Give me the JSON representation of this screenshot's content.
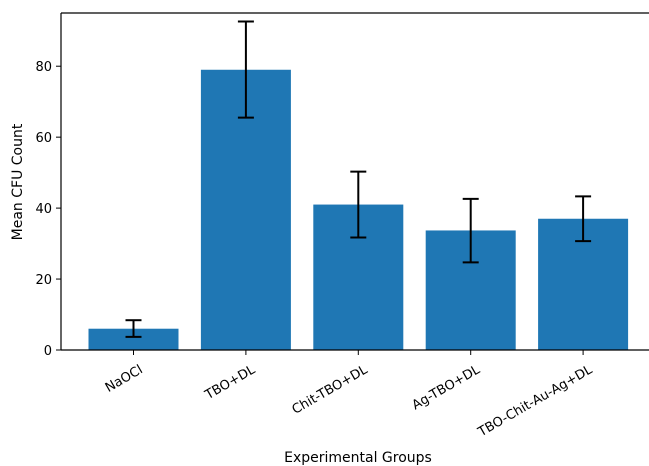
{
  "chart_data": {
    "type": "bar",
    "title": "",
    "xlabel": "Experimental Groups",
    "ylabel": "Mean CFU Count",
    "categories": [
      "NaOCl",
      "TBO+DL",
      "Chit-TBO+DL",
      "Ag-TBO+DL",
      "TBO-Chit-Au-Ag+DL"
    ],
    "values": [
      6,
      79,
      41,
      33.7,
      37
    ],
    "error_low": [
      3.7,
      65.5,
      31.7,
      24.7,
      30.7
    ],
    "error_high": [
      8.4,
      92.6,
      50.3,
      42.6,
      43.3
    ],
    "ylim": [
      0,
      95
    ],
    "yticks": [
      0,
      20,
      40,
      60,
      80
    ],
    "grid": false,
    "legend": "none",
    "bar_color": "#1f77b4",
    "error_bar_color": "#000000",
    "x_tick_rotation_deg": 30
  }
}
